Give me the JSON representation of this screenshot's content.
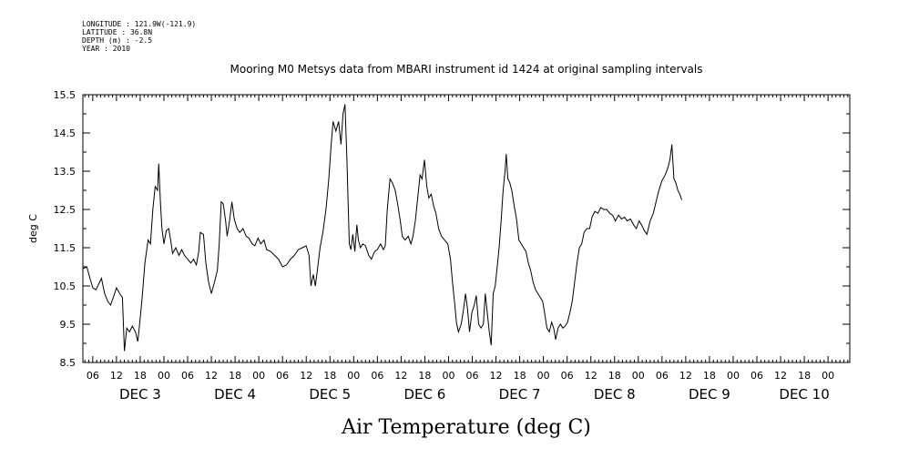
{
  "header": {
    "longitude": "LONGITUDE : 121.9W(-121.9)",
    "latitude": "LATITUDE : 36.8N",
    "depth": "DEPTH (m) : -2.5",
    "year": "YEAR : 2010"
  },
  "chart_data": {
    "type": "line",
    "title": "Mooring M0 Metsys data from MBARI instrument id 1424 at original sampling intervals",
    "xlabel": "Air Temperature (deg C)",
    "ylabel": "deg C",
    "ylim": [
      8.5,
      15.5
    ],
    "yticks": [
      "8.5",
      "9.5",
      "10.5",
      "11.5",
      "12.5",
      "13.5",
      "14.5",
      "15.5"
    ],
    "x_units": "hours since DEC 2 00:00",
    "xlim": [
      3.5,
      197.5
    ],
    "hour_ticks": [
      {
        "h": 6,
        "label": "06"
      },
      {
        "h": 12,
        "label": "12"
      },
      {
        "h": 18,
        "label": "18"
      },
      {
        "h": 24,
        "label": "00"
      },
      {
        "h": 30,
        "label": "06"
      },
      {
        "h": 36,
        "label": "12"
      },
      {
        "h": 42,
        "label": "18"
      },
      {
        "h": 48,
        "label": "00"
      },
      {
        "h": 54,
        "label": "06"
      },
      {
        "h": 60,
        "label": "12"
      },
      {
        "h": 66,
        "label": "18"
      },
      {
        "h": 72,
        "label": "00"
      },
      {
        "h": 78,
        "label": "06"
      },
      {
        "h": 84,
        "label": "12"
      },
      {
        "h": 90,
        "label": "18"
      },
      {
        "h": 96,
        "label": "00"
      },
      {
        "h": 102,
        "label": "06"
      },
      {
        "h": 108,
        "label": "12"
      },
      {
        "h": 114,
        "label": "18"
      },
      {
        "h": 120,
        "label": "00"
      },
      {
        "h": 126,
        "label": "06"
      },
      {
        "h": 132,
        "label": "12"
      },
      {
        "h": 138,
        "label": "18"
      },
      {
        "h": 144,
        "label": "00"
      },
      {
        "h": 150,
        "label": "06"
      },
      {
        "h": 156,
        "label": "12"
      },
      {
        "h": 162,
        "label": "18"
      },
      {
        "h": 168,
        "label": "00"
      },
      {
        "h": 174,
        "label": "06"
      },
      {
        "h": 180,
        "label": "12"
      },
      {
        "h": 186,
        "label": "18"
      },
      {
        "h": 192,
        "label": "00"
      }
    ],
    "day_labels": [
      {
        "h": 18,
        "label": "DEC  3"
      },
      {
        "h": 42,
        "label": "DEC  4"
      },
      {
        "h": 66,
        "label": "DEC  5"
      },
      {
        "h": 90,
        "label": "DEC  6"
      },
      {
        "h": 114,
        "label": "DEC  7"
      },
      {
        "h": 138,
        "label": "DEC  8"
      },
      {
        "h": 162,
        "label": "DEC  9"
      },
      {
        "h": 186,
        "label": "DEC 10"
      }
    ],
    "series": [
      {
        "color": "#000000",
        "points": [
          [
            3.5,
            10.95
          ],
          [
            4.5,
            11.0
          ],
          [
            5.3,
            10.7
          ],
          [
            6.0,
            10.45
          ],
          [
            6.8,
            10.4
          ],
          [
            7.5,
            10.55
          ],
          [
            8.2,
            10.7
          ],
          [
            9.0,
            10.3
          ],
          [
            9.8,
            10.1
          ],
          [
            10.5,
            10.0
          ],
          [
            11.2,
            10.2
          ],
          [
            12.0,
            10.45
          ],
          [
            12.8,
            10.3
          ],
          [
            13.5,
            10.2
          ],
          [
            14.0,
            8.8
          ],
          [
            14.6,
            9.4
          ],
          [
            15.3,
            9.3
          ],
          [
            16.0,
            9.45
          ],
          [
            16.8,
            9.3
          ],
          [
            17.4,
            9.05
          ],
          [
            17.9,
            9.55
          ],
          [
            18.5,
            10.2
          ],
          [
            19.2,
            11.1
          ],
          [
            20.0,
            11.7
          ],
          [
            20.6,
            11.6
          ],
          [
            21.2,
            12.5
          ],
          [
            21.8,
            13.1
          ],
          [
            22.4,
            13.0
          ],
          [
            22.7,
            13.7
          ],
          [
            23.1,
            12.7
          ],
          [
            23.5,
            12.0
          ],
          [
            24.0,
            11.6
          ],
          [
            24.6,
            11.95
          ],
          [
            25.2,
            12.0
          ],
          [
            25.7,
            11.7
          ],
          [
            26.2,
            11.35
          ],
          [
            27.0,
            11.5
          ],
          [
            27.8,
            11.3
          ],
          [
            28.5,
            11.45
          ],
          [
            29.2,
            11.3
          ],
          [
            30.0,
            11.2
          ],
          [
            30.8,
            11.1
          ],
          [
            31.5,
            11.2
          ],
          [
            32.2,
            11.05
          ],
          [
            32.8,
            11.4
          ],
          [
            33.2,
            11.9
          ],
          [
            34.0,
            11.85
          ],
          [
            34.6,
            11.1
          ],
          [
            35.3,
            10.6
          ],
          [
            36.0,
            10.3
          ],
          [
            36.8,
            10.6
          ],
          [
            37.5,
            10.9
          ],
          [
            38.0,
            11.6
          ],
          [
            38.5,
            12.7
          ],
          [
            39.0,
            12.65
          ],
          [
            39.6,
            12.2
          ],
          [
            40.0,
            11.8
          ],
          [
            40.6,
            12.2
          ],
          [
            41.2,
            12.7
          ],
          [
            41.8,
            12.25
          ],
          [
            42.5,
            12.0
          ],
          [
            43.2,
            11.9
          ],
          [
            44.0,
            12.0
          ],
          [
            44.8,
            11.8
          ],
          [
            45.5,
            11.75
          ],
          [
            46.3,
            11.6
          ],
          [
            47.0,
            11.55
          ],
          [
            47.8,
            11.75
          ],
          [
            48.5,
            11.6
          ],
          [
            49.3,
            11.7
          ],
          [
            50.0,
            11.45
          ],
          [
            51.0,
            11.4
          ],
          [
            52.0,
            11.3
          ],
          [
            53.0,
            11.2
          ],
          [
            54.0,
            11.0
          ],
          [
            55.0,
            11.05
          ],
          [
            56.0,
            11.2
          ],
          [
            57.0,
            11.3
          ],
          [
            58.0,
            11.45
          ],
          [
            59.0,
            11.5
          ],
          [
            60.0,
            11.55
          ],
          [
            60.7,
            11.3
          ],
          [
            61.2,
            10.5
          ],
          [
            61.8,
            10.8
          ],
          [
            62.3,
            10.5
          ],
          [
            62.8,
            10.9
          ],
          [
            63.5,
            11.5
          ],
          [
            64.2,
            11.9
          ],
          [
            65.0,
            12.5
          ],
          [
            65.7,
            13.3
          ],
          [
            66.3,
            14.2
          ],
          [
            66.8,
            14.8
          ],
          [
            67.5,
            14.55
          ],
          [
            68.2,
            14.8
          ],
          [
            68.8,
            14.2
          ],
          [
            69.3,
            15.0
          ],
          [
            69.8,
            15.25
          ],
          [
            70.3,
            13.8
          ],
          [
            70.6,
            12.7
          ],
          [
            70.9,
            11.6
          ],
          [
            71.3,
            11.45
          ],
          [
            71.8,
            11.85
          ],
          [
            72.3,
            11.4
          ],
          [
            72.8,
            12.1
          ],
          [
            73.2,
            11.7
          ],
          [
            73.7,
            11.5
          ],
          [
            74.3,
            11.6
          ],
          [
            75.0,
            11.55
          ],
          [
            75.8,
            11.3
          ],
          [
            76.5,
            11.2
          ],
          [
            77.3,
            11.4
          ],
          [
            78.0,
            11.45
          ],
          [
            78.8,
            11.6
          ],
          [
            79.5,
            11.45
          ],
          [
            80.0,
            11.55
          ],
          [
            80.5,
            12.5
          ],
          [
            81.2,
            13.3
          ],
          [
            81.8,
            13.2
          ],
          [
            82.5,
            13.0
          ],
          [
            83.2,
            12.6
          ],
          [
            83.8,
            12.2
          ],
          [
            84.3,
            11.8
          ],
          [
            85.0,
            11.7
          ],
          [
            85.8,
            11.8
          ],
          [
            86.5,
            11.6
          ],
          [
            87.0,
            11.8
          ],
          [
            87.6,
            12.2
          ],
          [
            88.2,
            12.8
          ],
          [
            88.8,
            13.4
          ],
          [
            89.3,
            13.3
          ],
          [
            89.9,
            13.8
          ],
          [
            90.5,
            13.1
          ],
          [
            91.0,
            12.8
          ],
          [
            91.6,
            12.9
          ],
          [
            92.2,
            12.6
          ],
          [
            92.8,
            12.4
          ],
          [
            93.5,
            12.0
          ],
          [
            94.2,
            11.8
          ],
          [
            95.0,
            11.7
          ],
          [
            95.8,
            11.6
          ],
          [
            96.5,
            11.2
          ],
          [
            97.0,
            10.6
          ],
          [
            97.6,
            10.0
          ],
          [
            98.0,
            9.55
          ],
          [
            98.5,
            9.3
          ],
          [
            99.2,
            9.5
          ],
          [
            99.8,
            9.9
          ],
          [
            100.3,
            10.3
          ],
          [
            100.8,
            9.9
          ],
          [
            101.3,
            9.3
          ],
          [
            101.9,
            9.8
          ],
          [
            102.5,
            10.0
          ],
          [
            103.0,
            10.25
          ],
          [
            103.6,
            9.5
          ],
          [
            104.2,
            9.4
          ],
          [
            104.8,
            9.5
          ],
          [
            105.3,
            10.3
          ],
          [
            105.8,
            9.8
          ],
          [
            106.3,
            9.3
          ],
          [
            106.8,
            8.95
          ],
          [
            107.3,
            10.3
          ],
          [
            107.8,
            10.5
          ],
          [
            108.3,
            11.0
          ],
          [
            108.8,
            11.5
          ],
          [
            109.3,
            12.2
          ],
          [
            109.8,
            13.0
          ],
          [
            110.3,
            13.5
          ],
          [
            110.6,
            13.95
          ],
          [
            111.0,
            13.3
          ],
          [
            111.5,
            13.2
          ],
          [
            112.0,
            13.0
          ],
          [
            112.6,
            12.6
          ],
          [
            113.2,
            12.25
          ],
          [
            113.8,
            11.7
          ],
          [
            114.4,
            11.6
          ],
          [
            115.0,
            11.5
          ],
          [
            115.6,
            11.4
          ],
          [
            116.2,
            11.1
          ],
          [
            116.8,
            10.9
          ],
          [
            117.4,
            10.6
          ],
          [
            118.0,
            10.4
          ],
          [
            118.6,
            10.3
          ],
          [
            119.2,
            10.2
          ],
          [
            119.8,
            10.1
          ],
          [
            120.3,
            9.8
          ],
          [
            120.9,
            9.4
          ],
          [
            121.5,
            9.3
          ],
          [
            122.1,
            9.55
          ],
          [
            122.6,
            9.4
          ],
          [
            123.1,
            9.1
          ],
          [
            123.7,
            9.4
          ],
          [
            124.3,
            9.5
          ],
          [
            124.9,
            9.4
          ],
          [
            125.5,
            9.45
          ],
          [
            126.1,
            9.55
          ],
          [
            126.7,
            9.8
          ],
          [
            127.3,
            10.1
          ],
          [
            127.9,
            10.6
          ],
          [
            128.5,
            11.1
          ],
          [
            129.1,
            11.5
          ],
          [
            129.7,
            11.6
          ],
          [
            130.3,
            11.9
          ],
          [
            131.0,
            12.0
          ],
          [
            131.7,
            12.0
          ],
          [
            132.3,
            12.3
          ],
          [
            133.0,
            12.45
          ],
          [
            133.8,
            12.4
          ],
          [
            134.5,
            12.55
          ],
          [
            135.2,
            12.5
          ],
          [
            136.0,
            12.5
          ],
          [
            136.8,
            12.4
          ],
          [
            137.5,
            12.35
          ],
          [
            138.2,
            12.2
          ],
          [
            139.0,
            12.35
          ],
          [
            139.8,
            12.25
          ],
          [
            140.5,
            12.3
          ],
          [
            141.2,
            12.2
          ],
          [
            142.0,
            12.25
          ],
          [
            142.8,
            12.1
          ],
          [
            143.5,
            12.0
          ],
          [
            144.2,
            12.2
          ],
          [
            144.8,
            12.1
          ],
          [
            145.5,
            11.95
          ],
          [
            146.2,
            11.85
          ],
          [
            147.0,
            12.2
          ],
          [
            147.8,
            12.4
          ],
          [
            148.5,
            12.7
          ],
          [
            149.2,
            13.0
          ],
          [
            150.0,
            13.25
          ],
          [
            150.8,
            13.4
          ],
          [
            151.5,
            13.6
          ],
          [
            152.0,
            13.8
          ],
          [
            152.5,
            14.2
          ],
          [
            153.0,
            13.3
          ],
          [
            153.5,
            13.2
          ],
          [
            154.0,
            13.0
          ],
          [
            154.5,
            12.9
          ],
          [
            155.0,
            12.75
          ]
        ]
      }
    ]
  }
}
